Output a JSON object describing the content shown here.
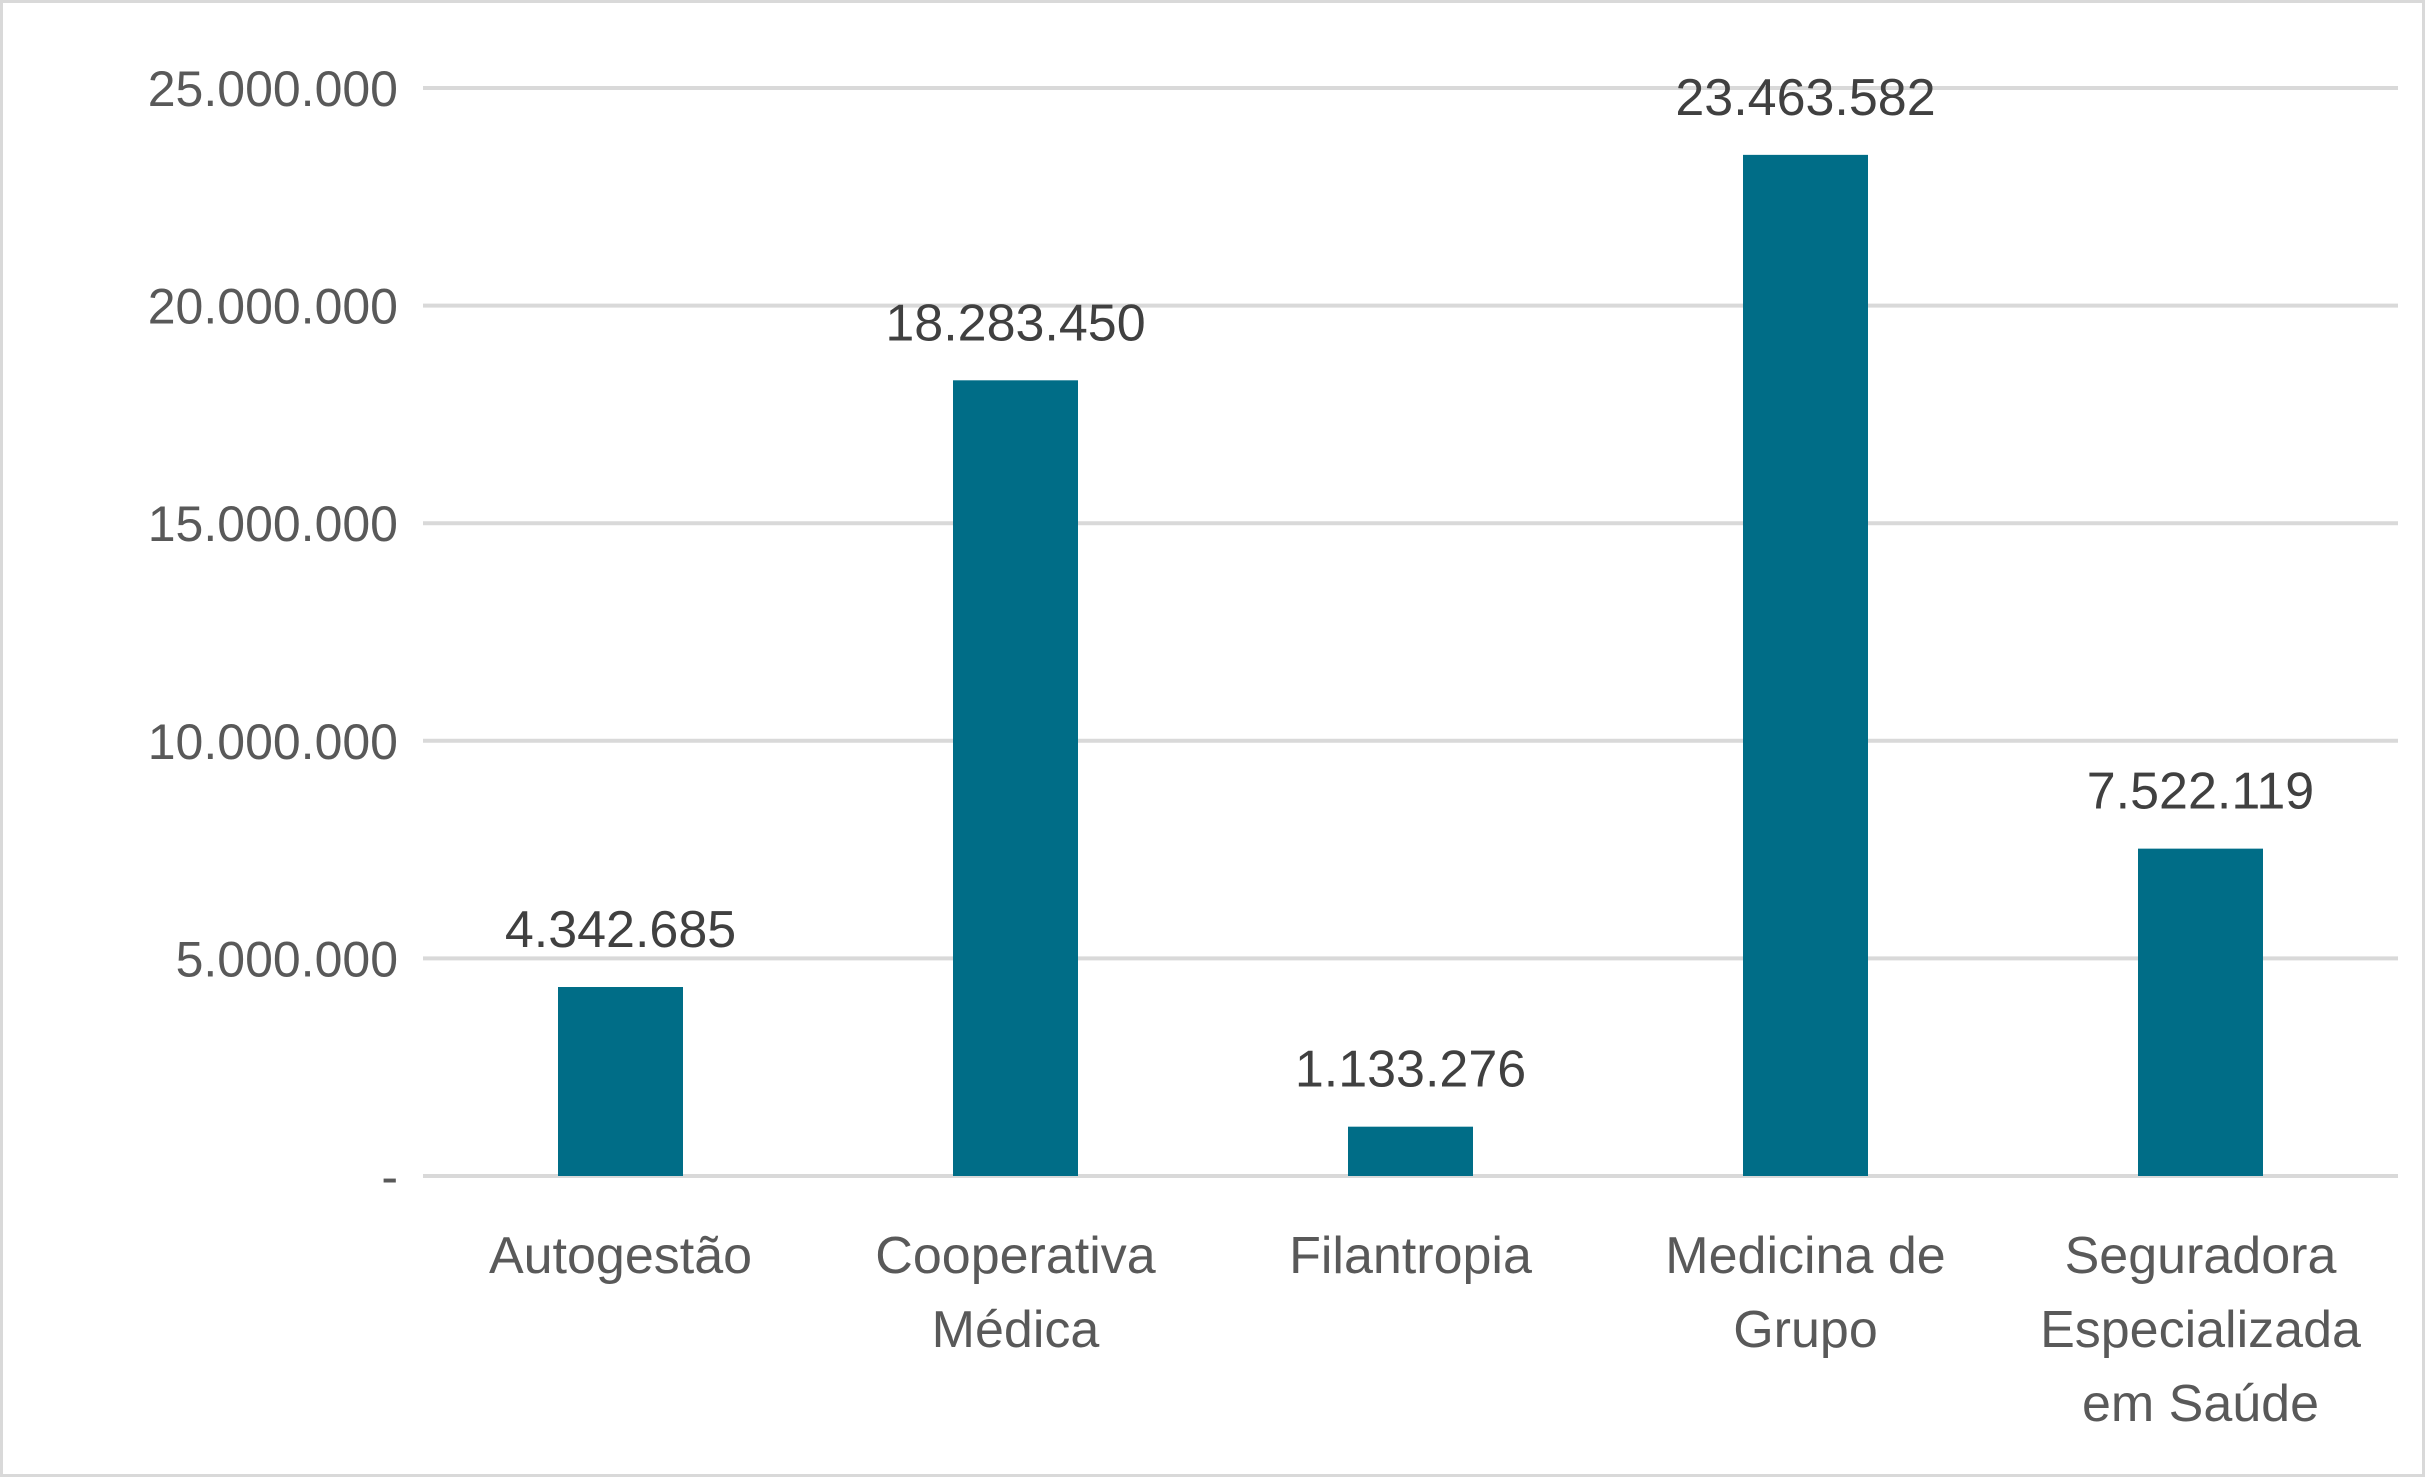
{
  "chart_data": {
    "type": "bar",
    "title": "",
    "xlabel": "",
    "ylabel": "",
    "categories": [
      [
        "Autogestão"
      ],
      [
        "Cooperativa",
        "Médica"
      ],
      [
        "Filantropia"
      ],
      [
        "Medicina de",
        "Grupo"
      ],
      [
        "Seguradora",
        "Especializada",
        "em Saúde"
      ]
    ],
    "values": [
      4342685,
      18283450,
      1133276,
      23463582,
      7522119
    ],
    "value_labels": [
      "4.342.685",
      "18.283.450",
      "1.133.276",
      "23.463.582",
      "7.522.119"
    ],
    "ylim": [
      0,
      25000000
    ],
    "yticks": [
      0,
      5000000,
      10000000,
      15000000,
      20000000,
      25000000
    ],
    "ytick_labels": [
      "-",
      "5.000.000",
      "10.000.000",
      "15.000.000",
      "20.000.000",
      "25.000.000"
    ],
    "grid": true,
    "legend": "none",
    "bar_color": "#006d87",
    "grid_color": "#d9d9d9",
    "text_color": "#595959"
  }
}
